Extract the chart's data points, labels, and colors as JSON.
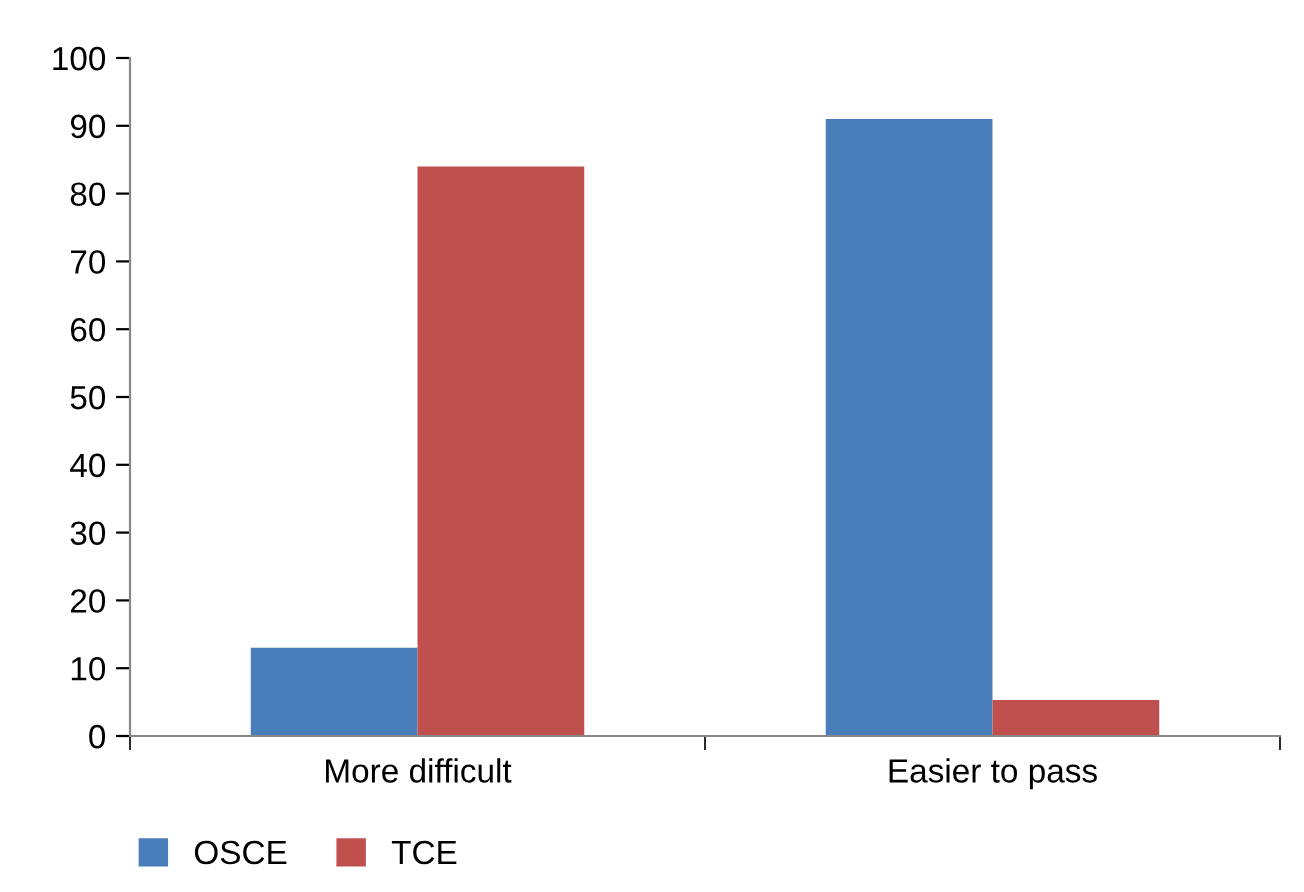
{
  "chart_data": {
    "type": "bar",
    "categories": [
      "More difficult",
      "Easier to pass"
    ],
    "series": [
      {
        "name": "OSCE",
        "color": "#4a7ebb",
        "values": [
          13,
          91
        ]
      },
      {
        "name": "TCE",
        "color": "#c0504d",
        "values": [
          84,
          5.3
        ]
      }
    ],
    "ylim": [
      0,
      100
    ],
    "yticks": [
      0,
      10,
      20,
      30,
      40,
      50,
      60,
      70,
      80,
      90,
      100
    ],
    "grid": false,
    "legend": "bottom left"
  }
}
